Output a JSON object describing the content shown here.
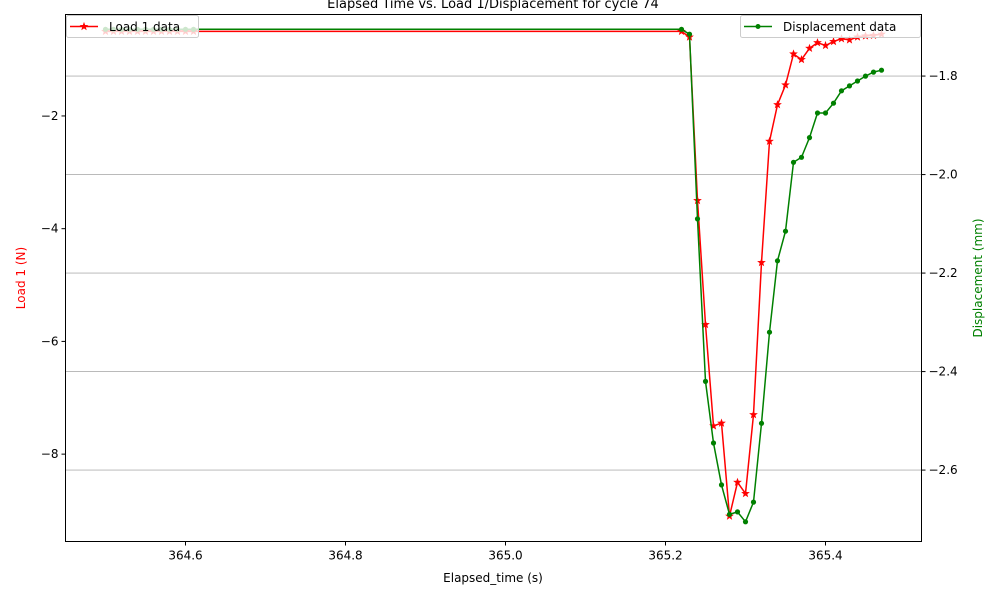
{
  "chart_data": {
    "type": "line",
    "title": "Elapsed Time vs. Load 1/Displacement for cycle 74",
    "xlabel": "Elapsed_time (s)",
    "ylabel_left": "Load 1 (N)",
    "ylabel_right": "Displacement (mm)",
    "xlim": [
      364.45,
      365.52
    ],
    "ylim_left": [
      -9.55,
      -0.2
    ],
    "ylim_right": [
      -2.745,
      -1.675
    ],
    "grid": "horizontal lines at right axis ticks",
    "x_ticks": [
      "364.6",
      "364.8",
      "365.0",
      "365.2",
      "365.4"
    ],
    "y_ticks_left": [
      "−2",
      "−4",
      "−6",
      "−8"
    ],
    "y_ticks_right": [
      "−1.8",
      "−2.0",
      "−2.2",
      "−2.4",
      "−2.6"
    ],
    "colors": {
      "load": "#ff0000",
      "displacement": "#008000"
    },
    "series": [
      {
        "name": "Load 1 data",
        "axis": "left",
        "marker": "star",
        "x": [
          364.5,
          364.51,
          364.52,
          364.53,
          364.54,
          364.55,
          364.56,
          364.57,
          364.58,
          364.59,
          364.6,
          364.61,
          365.22,
          365.23,
          365.24,
          365.25,
          365.26,
          365.27,
          365.28,
          365.29,
          365.3,
          365.31,
          365.32,
          365.33,
          365.34,
          365.35,
          365.36,
          365.37,
          365.38,
          365.39,
          365.4,
          365.41,
          365.42,
          365.43,
          365.44,
          365.45,
          365.46,
          365.47
        ],
        "values": [
          -0.5,
          -0.5,
          -0.5,
          -0.5,
          -0.5,
          -0.5,
          -0.5,
          -0.5,
          -0.5,
          -0.5,
          -0.5,
          -0.5,
          -0.5,
          -0.6,
          -3.5,
          -5.7,
          -7.5,
          -7.45,
          -9.1,
          -8.5,
          -8.7,
          -7.3,
          -4.6,
          -2.45,
          -1.8,
          -1.45,
          -0.9,
          -1.0,
          -0.8,
          -0.7,
          -0.75,
          -0.68,
          -0.63,
          -0.65,
          -0.6,
          -0.58,
          -0.57,
          -0.55
        ]
      },
      {
        "name": "Displacement data",
        "axis": "right",
        "marker": "dot",
        "x": [
          364.5,
          364.51,
          364.52,
          364.53,
          364.54,
          364.55,
          364.56,
          364.57,
          364.58,
          364.59,
          364.6,
          364.61,
          365.22,
          365.23,
          365.24,
          365.25,
          365.26,
          365.27,
          365.28,
          365.29,
          365.3,
          365.31,
          365.32,
          365.33,
          365.34,
          365.35,
          365.36,
          365.37,
          365.38,
          365.39,
          365.4,
          365.41,
          365.42,
          365.43,
          365.44,
          365.45,
          365.46,
          365.47
        ],
        "values": [
          -1.705,
          -1.705,
          -1.705,
          -1.705,
          -1.705,
          -1.705,
          -1.705,
          -1.705,
          -1.705,
          -1.705,
          -1.705,
          -1.705,
          -1.705,
          -1.715,
          -2.09,
          -2.42,
          -2.545,
          -2.63,
          -2.69,
          -2.685,
          -2.705,
          -2.665,
          -2.505,
          -2.32,
          -2.175,
          -2.115,
          -1.975,
          -1.965,
          -1.925,
          -1.875,
          -1.875,
          -1.855,
          -1.83,
          -1.82,
          -1.81,
          -1.8,
          -1.792,
          -1.788
        ]
      }
    ]
  }
}
